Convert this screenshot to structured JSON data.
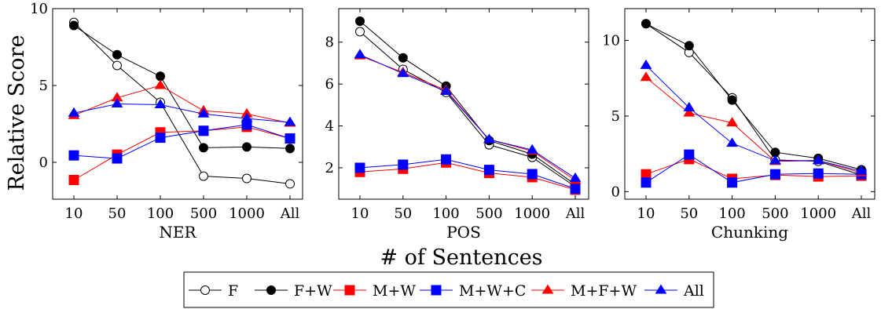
{
  "figure": {
    "ylabel": "Relative Score",
    "xlabel": "# of Sentences"
  },
  "legend": [
    {
      "name": "F",
      "color": "#000000",
      "marker": "circle-open"
    },
    {
      "name": "F+W",
      "color": "#000000",
      "marker": "circle-filled"
    },
    {
      "name": "M+W",
      "color": "#ff0000",
      "marker": "square"
    },
    {
      "name": "M+W+C",
      "color": "#0000ff",
      "marker": "square"
    },
    {
      "name": "M+F+W",
      "color": "#ff0000",
      "marker": "triangle"
    },
    {
      "name": "All",
      "color": "#0000ff",
      "marker": "triangle"
    }
  ],
  "chart_data": [
    {
      "type": "line",
      "xlabel": "NER",
      "categories": [
        "10",
        "50",
        "100",
        "500",
        "1000",
        "All"
      ],
      "ylim": [
        -2.4,
        10
      ],
      "yticks": [
        0,
        5,
        10
      ],
      "series": [
        {
          "name": "F",
          "values": [
            9.1,
            6.3,
            3.9,
            -0.9,
            -1.05,
            -1.4
          ]
        },
        {
          "name": "F+W",
          "values": [
            8.9,
            7.0,
            5.6,
            0.95,
            1.0,
            0.9
          ]
        },
        {
          "name": "M+W",
          "values": [
            -1.15,
            0.5,
            1.95,
            2.05,
            2.3,
            1.55
          ]
        },
        {
          "name": "M+W+C",
          "values": [
            0.45,
            0.25,
            1.6,
            2.05,
            2.45,
            1.55
          ]
        },
        {
          "name": "M+F+W",
          "values": [
            3.05,
            4.2,
            5.0,
            3.35,
            3.15,
            2.55
          ]
        },
        {
          "name": "All",
          "values": [
            3.2,
            3.8,
            3.75,
            3.15,
            2.85,
            2.6
          ]
        }
      ]
    },
    {
      "type": "line",
      "xlabel": "POS",
      "categories": [
        "10",
        "50",
        "100",
        "500",
        "1000",
        "All"
      ],
      "ylim": [
        0.5,
        9.6
      ],
      "yticks": [
        2,
        4,
        6,
        8
      ],
      "series": [
        {
          "name": "F",
          "values": [
            8.5,
            6.7,
            5.6,
            3.1,
            2.5,
            1.1
          ]
        },
        {
          "name": "F+W",
          "values": [
            9.0,
            7.25,
            5.9,
            3.3,
            2.65,
            1.2
          ]
        },
        {
          "name": "M+W",
          "values": [
            1.8,
            1.95,
            2.25,
            1.75,
            1.55,
            0.95
          ]
        },
        {
          "name": "M+W+C",
          "values": [
            2.0,
            2.15,
            2.4,
            1.9,
            1.7,
            1.0
          ]
        },
        {
          "name": "M+F+W",
          "values": [
            7.35,
            6.55,
            5.7,
            3.35,
            2.8,
            1.4
          ]
        },
        {
          "name": "All",
          "values": [
            7.4,
            6.5,
            5.65,
            3.35,
            2.85,
            1.5
          ]
        }
      ]
    },
    {
      "type": "line",
      "xlabel": "Chunking",
      "categories": [
        "10",
        "50",
        "100",
        "500",
        "1000",
        "All"
      ],
      "ylim": [
        -0.5,
        12.1
      ],
      "yticks": [
        0,
        5,
        10
      ],
      "series": [
        {
          "name": "F",
          "values": [
            11.1,
            9.2,
            6.2,
            2.1,
            2.0,
            1.1
          ]
        },
        {
          "name": "F+W",
          "values": [
            11.1,
            9.65,
            6.05,
            2.6,
            2.2,
            1.45
          ]
        },
        {
          "name": "M+W",
          "values": [
            1.15,
            2.15,
            0.85,
            1.1,
            1.0,
            1.05
          ]
        },
        {
          "name": "M+W+C",
          "values": [
            0.6,
            2.45,
            0.6,
            1.15,
            1.2,
            1.15
          ]
        },
        {
          "name": "M+F+W",
          "values": [
            7.55,
            5.2,
            4.55,
            2.0,
            2.05,
            1.25
          ]
        },
        {
          "name": "All",
          "values": [
            8.35,
            5.55,
            3.2,
            2.05,
            2.05,
            1.35
          ]
        }
      ]
    }
  ]
}
